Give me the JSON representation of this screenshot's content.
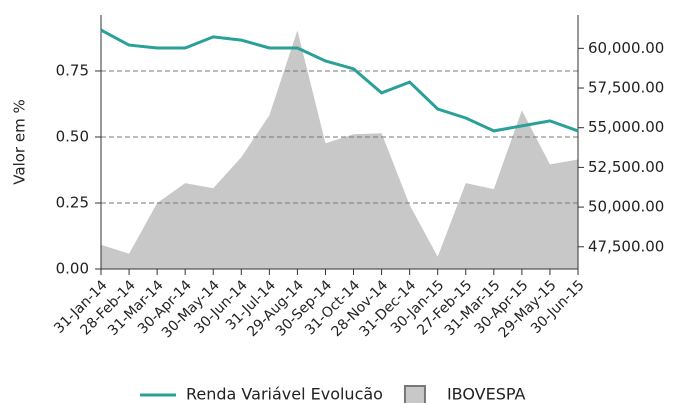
{
  "chart_data": {
    "type": "line-area",
    "ylabel": "Valor em %",
    "categories": [
      "31-Jan-14",
      "28-Feb-14",
      "31-Mar-14",
      "30-Apr-14",
      "30-May-14",
      "30-Jun-14",
      "31-Jul-14",
      "29-Aug-14",
      "30-Sep-14",
      "31-Oct-14",
      "28-Nov-14",
      "31-Dec-14",
      "30-Jan-15",
      "27-Feb-15",
      "31-Mar-15",
      "30-Apr-15",
      "29-May-15",
      "30-Jun-15"
    ],
    "series": [
      {
        "name": "Renda Variável Evolucão",
        "color": "#2aa198",
        "kind": "line",
        "values": [
          0.905,
          0.848,
          0.837,
          0.837,
          0.879,
          0.867,
          0.837,
          0.837,
          0.788,
          0.758,
          0.667,
          0.708,
          0.606,
          0.572,
          0.523,
          0.542,
          0.561,
          0.523
        ]
      },
      {
        "name": "IBOVESPA",
        "color": "#c8c8c8",
        "kind": "area",
        "axis": "y2",
        "values": [
          47625,
          47060,
          50250,
          51510,
          51190,
          53140,
          55780,
          61120,
          54020,
          54590,
          54650,
          50130,
          46870,
          51510,
          51130,
          56090,
          52690,
          53000
        ]
      }
    ],
    "ylim": [
      0,
      0.962
    ],
    "yticks": [
      {
        "value": 0,
        "label": "0.00"
      },
      {
        "value": 0.25,
        "label": "0.25"
      },
      {
        "value": 0.5,
        "label": "0.50"
      },
      {
        "value": 0.75,
        "label": "0.75"
      }
    ],
    "y2lim": [
      46100,
      62100
    ],
    "y2ticks": [
      {
        "value": 47500,
        "label": "47,500.00"
      },
      {
        "value": 50000,
        "label": "50,000.00"
      },
      {
        "value": 52500,
        "label": "52,500.00"
      },
      {
        "value": 55000,
        "label": "55,000.00"
      },
      {
        "value": 57500,
        "label": "57,500.00"
      },
      {
        "value": 60000,
        "label": "60,000.00"
      }
    ],
    "grid": true,
    "legend": "bottom"
  }
}
